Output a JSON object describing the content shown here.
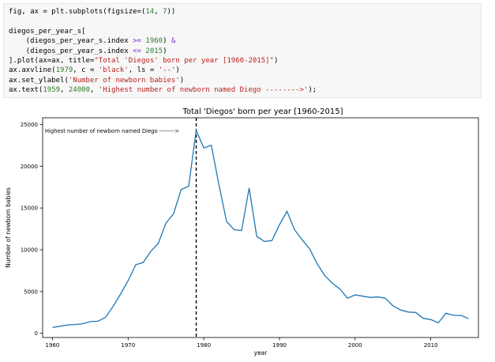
{
  "code": {
    "lines": [
      [
        {
          "t": "fig, ax = plt.subplots(figsize=(",
          "c": "n"
        },
        {
          "t": "14",
          "c": "m"
        },
        {
          "t": ", ",
          "c": "n"
        },
        {
          "t": "7",
          "c": "m"
        },
        {
          "t": "))",
          "c": "n"
        }
      ],
      [
        {
          "t": "",
          "c": "n"
        }
      ],
      [
        {
          "t": "diegos_per_year_s[",
          "c": "n"
        }
      ],
      [
        {
          "t": "    (diegos_per_year_s.index ",
          "c": "n"
        },
        {
          "t": ">=",
          "c": "o"
        },
        {
          "t": " ",
          "c": "n"
        },
        {
          "t": "1960",
          "c": "m"
        },
        {
          "t": ") ",
          "c": "n"
        },
        {
          "t": "&",
          "c": "o"
        }
      ],
      [
        {
          "t": "    (diegos_per_year_s.index ",
          "c": "n"
        },
        {
          "t": "<=",
          "c": "o"
        },
        {
          "t": " ",
          "c": "n"
        },
        {
          "t": "2015",
          "c": "m"
        },
        {
          "t": ")",
          "c": "n"
        }
      ],
      [
        {
          "t": "].plot(ax=ax, title=",
          "c": "n"
        },
        {
          "t": "\"Total 'Diegos' born per year [1960-2015]\"",
          "c": "s"
        },
        {
          "t": ")",
          "c": "n"
        }
      ],
      [
        {
          "t": "ax.axvline(",
          "c": "n"
        },
        {
          "t": "1979",
          "c": "m"
        },
        {
          "t": ", c = ",
          "c": "n"
        },
        {
          "t": "'black'",
          "c": "s"
        },
        {
          "t": ", ls = ",
          "c": "n"
        },
        {
          "t": "'--'",
          "c": "s"
        },
        {
          "t": ")",
          "c": "n"
        }
      ],
      [
        {
          "t": "ax.set_ylabel(",
          "c": "n"
        },
        {
          "t": "'Number of newborn babies'",
          "c": "s"
        },
        {
          "t": ")",
          "c": "n"
        }
      ],
      [
        {
          "t": "ax.text(",
          "c": "n"
        },
        {
          "t": "1959",
          "c": "m"
        },
        {
          "t": ", ",
          "c": "n"
        },
        {
          "t": "24000",
          "c": "m"
        },
        {
          "t": ", ",
          "c": "n"
        },
        {
          "t": "'Highest number of newborn named Diego -------->'",
          "c": "s"
        },
        {
          "t": ");",
          "c": "n"
        }
      ]
    ]
  },
  "chart_data": {
    "type": "line",
    "title": "Total 'Diegos' born per year [1960-2015]",
    "xlabel": "year",
    "ylabel": "Number of newborn babies",
    "xlim": [
      1958.7,
      2016.3
    ],
    "ylim": [
      -500,
      25800
    ],
    "xticks": [
      1960,
      1970,
      1980,
      1990,
      2000,
      2010
    ],
    "yticks": [
      0,
      5000,
      10000,
      15000,
      20000,
      25000
    ],
    "grid": false,
    "line_color": "#1f77b4",
    "vline": {
      "x": 1979,
      "color": "#000000",
      "style": "dashed"
    },
    "annotation": {
      "x": 1959,
      "y": 24000,
      "text": "Highest number of newborn named Diego -------->"
    },
    "x": [
      1960,
      1961,
      1962,
      1963,
      1964,
      1965,
      1966,
      1967,
      1968,
      1969,
      1970,
      1971,
      1972,
      1973,
      1974,
      1975,
      1976,
      1977,
      1978,
      1979,
      1980,
      1981,
      1982,
      1983,
      1984,
      1985,
      1986,
      1987,
      1988,
      1989,
      1990,
      1991,
      1992,
      1993,
      1994,
      1995,
      1996,
      1997,
      1998,
      1999,
      2000,
      2001,
      2002,
      2003,
      2004,
      2005,
      2006,
      2007,
      2008,
      2009,
      2010,
      2011,
      2012,
      2013,
      2014,
      2015
    ],
    "y": [
      700,
      850,
      1000,
      1050,
      1150,
      1400,
      1450,
      1900,
      3200,
      4700,
      6300,
      8200,
      8500,
      9800,
      10800,
      13200,
      14300,
      17200,
      17600,
      24300,
      22200,
      22500,
      17800,
      13400,
      12400,
      12300,
      17400,
      11600,
      11000,
      11100,
      13000,
      14600,
      12400,
      11200,
      10100,
      8300,
      6900,
      6000,
      5300,
      4200,
      4600,
      4450,
      4300,
      4350,
      4200,
      3300,
      2800,
      2550,
      2500,
      1800,
      1650,
      1250,
      2400,
      2150,
      2150,
      1750
    ]
  }
}
